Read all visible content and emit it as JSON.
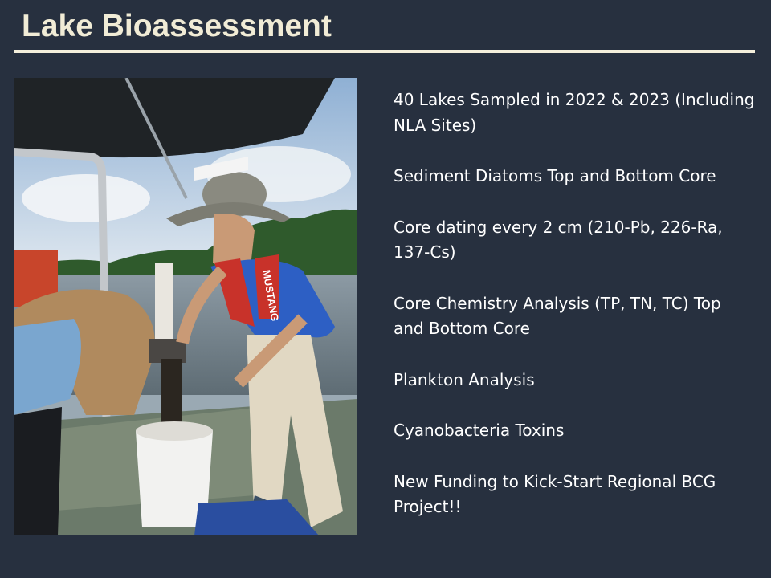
{
  "slide": {
    "title": "Lake Bioassessment",
    "bullets": [
      "40 Lakes Sampled in 2022 & 2023 (Including NLA Sites)",
      "Sediment Diatoms Top and Bottom Core",
      "Core dating every 2 cm (210-Pb, 226-Ra, 137-Cs)",
      "Core Chemistry Analysis (TP, TN, TC) Top and Bottom Core",
      "Plankton Analysis",
      "Cyanobacteria Toxins",
      "New Funding to Kick-Start Regional BCG Project!!"
    ],
    "photo": {
      "life_vest_text": "MUSTANG"
    }
  },
  "colors": {
    "background": "#27303f",
    "title": "#f1ecd6",
    "rule": "#f4efdc",
    "text": "#ffffff"
  }
}
